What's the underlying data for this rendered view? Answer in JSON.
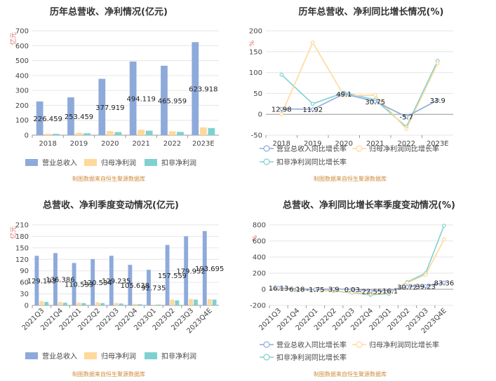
{
  "colors": {
    "revenue": "#8eaadb",
    "net_profit": "#ffd999",
    "deducted_profit": "#7fd1d1",
    "grid": "#e6e6e6",
    "axis": "#999999"
  },
  "chart_data": [
    {
      "type": "bar",
      "title": "历年总营收、净利情况(亿元)",
      "unit": "亿元",
      "categories": [
        "2018",
        "2019",
        "2020",
        "2021",
        "2022",
        "2023E"
      ],
      "ylim": [
        0,
        700
      ],
      "yticks": [
        0,
        100,
        200,
        300,
        400,
        500,
        600,
        700
      ],
      "series": [
        {
          "name": "营业总收入",
          "values": [
            226.459,
            253.459,
            377.919,
            494.119,
            465.959,
            623.918
          ],
          "labels": [
            "226.459",
            "253.459",
            "377.919",
            "494.119",
            "465.959",
            "623.918"
          ]
        },
        {
          "name": "归母净利润",
          "values": [
            10,
            16,
            27,
            36,
            26,
            52
          ]
        },
        {
          "name": "扣非净利润",
          "values": [
            9,
            13,
            21,
            30,
            22,
            48
          ]
        }
      ],
      "source": "制图数据来自恒生聚源数据库"
    },
    {
      "type": "line",
      "title": "历年总营收、净利同比增长情况(%)",
      "unit": "%",
      "categories": [
        "2018",
        "2019",
        "2020",
        "2021",
        "2022",
        "2023E"
      ],
      "ylim": [
        -50,
        200
      ],
      "yticks": [
        -50,
        0,
        50,
        100,
        150,
        200
      ],
      "series": [
        {
          "name": "营业总收入同比增长率",
          "values": [
            12.98,
            11.92,
            49.1,
            30.75,
            -5.7,
            33.9
          ],
          "labels": [
            "12.98",
            "11.92",
            "49.1",
            "30.75",
            "-5.7",
            "33.9"
          ]
        },
        {
          "name": "归母净利润同比增长率",
          "values": [
            0,
            172,
            45,
            46,
            -35,
            122
          ]
        },
        {
          "name": "扣非净利润同比增长率",
          "values": [
            95,
            25,
            52,
            35,
            -30,
            128
          ]
        }
      ],
      "source": "制图数据来自恒生聚源数据库"
    },
    {
      "type": "bar",
      "title": "总营收、净利季度变动情况(亿元)",
      "unit": "亿元",
      "categories": [
        "2021Q3",
        "2021Q4",
        "2022Q1",
        "2022Q2",
        "2022Q3",
        "2022Q4",
        "2023Q1",
        "2023Q2",
        "2023Q3",
        "2023Q4E"
      ],
      "ylim": [
        0,
        210
      ],
      "yticks": [
        0,
        30,
        60,
        90,
        120,
        150,
        180,
        210
      ],
      "series": [
        {
          "name": "营业总收入",
          "values": [
            129.193,
            136.386,
            110.533,
            120.534,
            129.235,
            105.638,
            92.735,
            157.559,
            179.932,
            193.695
          ],
          "labels": [
            "129.193",
            "136.386",
            "110.533",
            "120.534",
            "129.235",
            "105.638",
            "92.735",
            "157.559",
            "179.932",
            "193.695"
          ]
        },
        {
          "name": "归母净利润",
          "values": [
            11,
            9,
            7,
            8,
            6,
            4,
            2,
            15,
            17,
            16
          ]
        },
        {
          "name": "扣非净利润",
          "values": [
            9,
            7,
            6,
            6,
            5,
            3,
            2,
            13,
            15,
            15
          ]
        }
      ],
      "source": "制图数据来自恒生聚源数据库"
    },
    {
      "type": "line",
      "title": "总营收、净利同比增长率季度变动情况(%)",
      "unit": "%",
      "categories": [
        "2021Q3",
        "2021Q4",
        "2022Q1",
        "2022Q2",
        "2022Q3",
        "2022Q4",
        "2023Q1",
        "2023Q2",
        "2023Q3",
        "2023Q4E"
      ],
      "ylim": [
        -200,
        800
      ],
      "yticks": [
        -200,
        0,
        200,
        400,
        600,
        800
      ],
      "series": [
        {
          "name": "营业总收入同比增长率",
          "values": [
            16.13,
            6.18,
            -1.75,
            3.9,
            0.03,
            -22.55,
            -16.1,
            30.72,
            39.23,
            83.36
          ],
          "labels": [
            "16.13",
            "6.18",
            "-1.75",
            "3.9",
            "0.03",
            "-22.55",
            "-16.1",
            "30.72",
            "39.23",
            "83.36"
          ]
        },
        {
          "name": "归母净利润同比增长率",
          "values": [
            5,
            -5,
            -10,
            -15,
            -40,
            -60,
            -45,
            80,
            180,
            620
          ]
        },
        {
          "name": "扣非净利润同比增长率",
          "values": [
            10,
            -8,
            -12,
            -20,
            -45,
            -70,
            -55,
            90,
            200,
            790
          ]
        }
      ],
      "source": "制图数据来自恒生聚源数据库"
    }
  ]
}
